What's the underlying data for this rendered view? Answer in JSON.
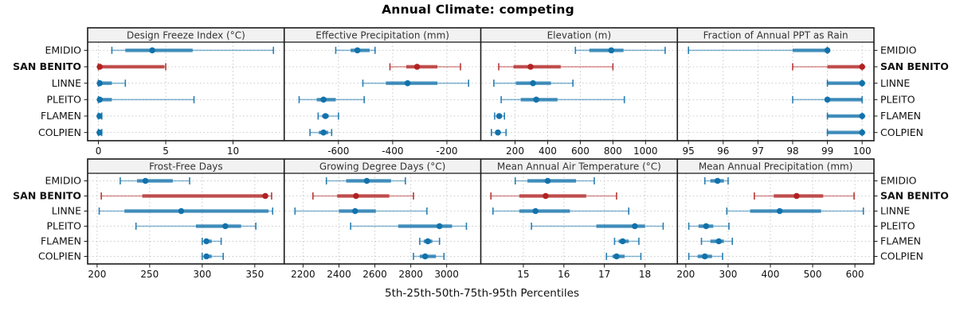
{
  "title": "Annual Climate: competing",
  "caption": "5th-25th-50th-75th-95th Percentiles",
  "sites": [
    "EMIDIO",
    "SAN BENITO",
    "LINNE",
    "PLEITO",
    "FLAMEN",
    "COLPIEN"
  ],
  "highlight_site": "SAN BENITO",
  "colors": {
    "normal": "#1272ab",
    "highlight": "#b22222",
    "header_bg": "#f2f2f2",
    "grid": "#c9c9c9",
    "border": "#1a1a1a",
    "text": "#111111",
    "header_text": "#333333"
  },
  "chart_data": {
    "type": "dotplot",
    "note": "Each series array gives [5th, 25th, 50th, 75th, 95th] percentile values; dot = median, thick bar = 25th-75th, whisker caps = 5th/95th",
    "percentiles": [
      5,
      25,
      50,
      75,
      95
    ],
    "legend_position": "none",
    "grid": "dotted",
    "panels": [
      {
        "title": "Design Freeze Index (°C)",
        "row": 0,
        "col": 0,
        "xlim": [
          -0.8,
          13.8
        ],
        "ticks": [
          0,
          5,
          10
        ],
        "series": [
          {
            "site": "EMIDIO",
            "p": [
              1,
              2,
              4,
              7,
              13
            ]
          },
          {
            "site": "SAN BENITO",
            "p": [
              0,
              0,
              0.1,
              4.9,
              5
            ]
          },
          {
            "site": "LINNE",
            "p": [
              0,
              0,
              0.1,
              1,
              2
            ]
          },
          {
            "site": "PLEITO",
            "p": [
              0,
              0,
              0.1,
              1,
              7.1
            ]
          },
          {
            "site": "FLAMEN",
            "p": [
              0,
              0,
              0.08,
              0.15,
              0.25
            ]
          },
          {
            "site": "COLPIEN",
            "p": [
              0,
              0,
              0.08,
              0.15,
              0.25
            ]
          }
        ]
      },
      {
        "title": "Effective Precipitation (mm)",
        "row": 0,
        "col": 1,
        "xlim": [
          -800,
          -75
        ],
        "ticks": [
          -600,
          -400,
          -200
        ],
        "series": [
          {
            "site": "EMIDIO",
            "p": [
              -610,
              -555,
              -530,
              -485,
              -465
            ]
          },
          {
            "site": "SAN BENITO",
            "p": [
              -410,
              -350,
              -310,
              -235,
              -150
            ]
          },
          {
            "site": "LINNE",
            "p": [
              -510,
              -425,
              -345,
              -235,
              -120
            ]
          },
          {
            "site": "PLEITO",
            "p": [
              -745,
              -680,
              -655,
              -610,
              -505
            ]
          },
          {
            "site": "FLAMEN",
            "p": [
              -675,
              -660,
              -648,
              -636,
              -600
            ]
          },
          {
            "site": "COLPIEN",
            "p": [
              -705,
              -672,
              -655,
              -638,
              -625
            ]
          }
        ]
      },
      {
        "title": "Elevation (m)",
        "row": 0,
        "col": 2,
        "xlim": [
          -10,
          1195
        ],
        "ticks": [
          200,
          400,
          600,
          800,
          1000
        ],
        "series": [
          {
            "site": "EMIDIO",
            "p": [
              570,
              655,
              790,
              865,
              1120
            ]
          },
          {
            "site": "SAN BENITO",
            "p": [
              100,
              190,
              295,
              480,
              800
            ]
          },
          {
            "site": "LINNE",
            "p": [
              70,
              205,
              310,
              420,
              555
            ]
          },
          {
            "site": "PLEITO",
            "p": [
              115,
              235,
              330,
              460,
              870
            ]
          },
          {
            "site": "FLAMEN",
            "p": [
              75,
              88,
              103,
              118,
              135
            ]
          },
          {
            "site": "COLPIEN",
            "p": [
              55,
              78,
              95,
              110,
              145
            ]
          }
        ]
      },
      {
        "title": "Fraction of Annual PPT as Rain",
        "row": 0,
        "col": 3,
        "xlim": [
          94.68,
          100.34
        ],
        "ticks": [
          95,
          96,
          97,
          98,
          99,
          100
        ],
        "series": [
          {
            "site": "EMIDIO",
            "p": [
              95,
              98,
              99,
              99,
              99
            ]
          },
          {
            "site": "SAN BENITO",
            "p": [
              98,
              99,
              100,
              100,
              100
            ]
          },
          {
            "site": "LINNE",
            "p": [
              99,
              99,
              100,
              100,
              100
            ]
          },
          {
            "site": "PLEITO",
            "p": [
              98,
              99,
              99,
              100,
              100
            ]
          },
          {
            "site": "FLAMEN",
            "p": [
              99,
              99,
              100,
              100,
              100
            ]
          },
          {
            "site": "COLPIEN",
            "p": [
              99,
              99,
              100,
              100,
              100
            ]
          }
        ]
      },
      {
        "title": "Frost-Free Days",
        "row": 1,
        "col": 0,
        "xlim": [
          191,
          378
        ],
        "ticks": [
          200,
          250,
          300,
          350
        ],
        "series": [
          {
            "site": "EMIDIO",
            "p": [
              222,
              238,
              246,
              272,
              288
            ]
          },
          {
            "site": "SAN BENITO",
            "p": [
              204,
              243,
              360,
              362,
              366
            ]
          },
          {
            "site": "LINNE",
            "p": [
              202,
              226,
              280,
              363,
              367
            ]
          },
          {
            "site": "PLEITO",
            "p": [
              237,
              294,
              322,
              337,
              351
            ]
          },
          {
            "site": "FLAMEN",
            "p": [
              300,
              302,
              304,
              309,
              318
            ]
          },
          {
            "site": "COLPIEN",
            "p": [
              300,
              302,
              304,
              309,
              320
            ]
          }
        ]
      },
      {
        "title": "Growing Degree Days (°C)",
        "row": 1,
        "col": 1,
        "xlim": [
          2095,
          3190
        ],
        "ticks": [
          2200,
          2400,
          2600,
          2800,
          3000
        ],
        "series": [
          {
            "site": "EMIDIO",
            "p": [
              2330,
              2440,
              2555,
              2690,
              2770
            ]
          },
          {
            "site": "SAN BENITO",
            "p": [
              2255,
              2390,
              2495,
              2680,
              2815
            ]
          },
          {
            "site": "LINNE",
            "p": [
              2155,
              2400,
              2490,
              2605,
              2890
            ]
          },
          {
            "site": "PLEITO",
            "p": [
              2465,
              2730,
              2960,
              3030,
              3110
            ]
          },
          {
            "site": "FLAMEN",
            "p": [
              2850,
              2872,
              2895,
              2920,
              2960
            ]
          },
          {
            "site": "COLPIEN",
            "p": [
              2815,
              2850,
              2880,
              2940,
              2985
            ]
          }
        ]
      },
      {
        "title": "Mean Annual Air Temperature (°C)",
        "row": 1,
        "col": 2,
        "xlim": [
          13.95,
          18.8
        ],
        "ticks": [
          15,
          16,
          17,
          18
        ],
        "series": [
          {
            "site": "EMIDIO",
            "p": [
              14.8,
              15.1,
              15.6,
              16.3,
              16.75
            ]
          },
          {
            "site": "SAN BENITO",
            "p": [
              14.2,
              14.9,
              15.55,
              16.55,
              17.3
            ]
          },
          {
            "site": "LINNE",
            "p": [
              14.25,
              14.9,
              15.3,
              16.15,
              17.6
            ]
          },
          {
            "site": "PLEITO",
            "p": [
              15.2,
              16.8,
              17.75,
              18.0,
              18.45
            ]
          },
          {
            "site": "FLAMEN",
            "p": [
              17.25,
              17.35,
              17.45,
              17.6,
              17.85
            ]
          },
          {
            "site": "COLPIEN",
            "p": [
              17.05,
              17.2,
              17.3,
              17.5,
              17.9
            ]
          }
        ]
      },
      {
        "title": "Mean Annual Precipitation (mm)",
        "row": 1,
        "col": 3,
        "xlim": [
          180,
          645
        ],
        "ticks": [
          200,
          300,
          400,
          500,
          600
        ],
        "series": [
          {
            "site": "EMIDIO",
            "p": [
              245,
              258,
              275,
              290,
              300
            ]
          },
          {
            "site": "SAN BENITO",
            "p": [
              362,
              408,
              462,
              525,
              598
            ]
          },
          {
            "site": "LINNE",
            "p": [
              297,
              352,
              422,
              520,
              620
            ]
          },
          {
            "site": "PLEITO",
            "p": [
              207,
              230,
              248,
              265,
              302
            ]
          },
          {
            "site": "FLAMEN",
            "p": [
              237,
              258,
              278,
              290,
              310
            ]
          },
          {
            "site": "COLPIEN",
            "p": [
              207,
              228,
              245,
              262,
              287
            ]
          }
        ]
      }
    ]
  }
}
